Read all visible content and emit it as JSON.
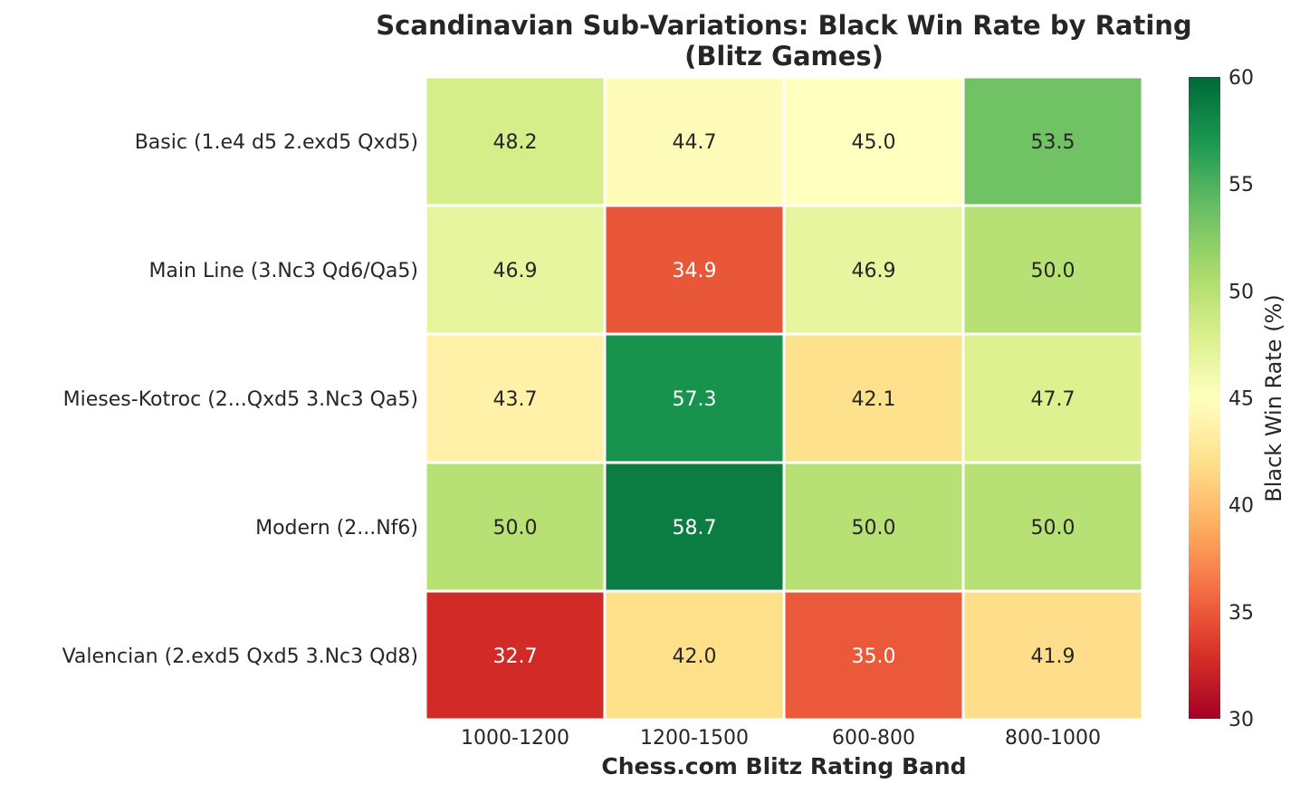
{
  "chart_data": {
    "type": "heatmap",
    "title": [
      "Scandinavian Sub-Variations: Black Win Rate by Rating",
      "(Blitz Games)"
    ],
    "xlabel": "Chess.com Blitz Rating Band",
    "colorbar_label": "Black Win Rate (%)",
    "x_categories": [
      "1000-1200",
      "1200-1500",
      "600-800",
      "800-1000"
    ],
    "y_categories": [
      "Basic (1.e4 d5 2.exd5 Qxd5)",
      "Main Line (3.Nc3 Qd6/Qa5)",
      "Mieses-Kotroc (2...Qxd5 3.Nc3 Qa5)",
      "Modern (2...Nf6)",
      "Valencian (2.exd5 Qxd5 3.Nc3 Qd8)"
    ],
    "values": [
      [
        48.2,
        44.7,
        45.0,
        53.5
      ],
      [
        46.9,
        34.9,
        46.9,
        50.0
      ],
      [
        43.7,
        57.3,
        42.1,
        47.7
      ],
      [
        50.0,
        58.7,
        50.0,
        50.0
      ],
      [
        32.7,
        42.0,
        35.0,
        41.9
      ]
    ],
    "value_labels": [
      [
        "48.2",
        "44.7",
        "45.0",
        "53.5"
      ],
      [
        "46.9",
        "34.9",
        "46.9",
        "50.0"
      ],
      [
        "43.7",
        "57.3",
        "42.1",
        "47.7"
      ],
      [
        "50.0",
        "58.7",
        "50.0",
        "50.0"
      ],
      [
        "32.7",
        "42.0",
        "35.0",
        "41.9"
      ]
    ],
    "colorscale": "RdYlGn",
    "vmin": 30,
    "vmax": 60,
    "colorbar_ticks": [
      "30",
      "35",
      "40",
      "45",
      "50",
      "55",
      "60"
    ],
    "grid": false
  }
}
